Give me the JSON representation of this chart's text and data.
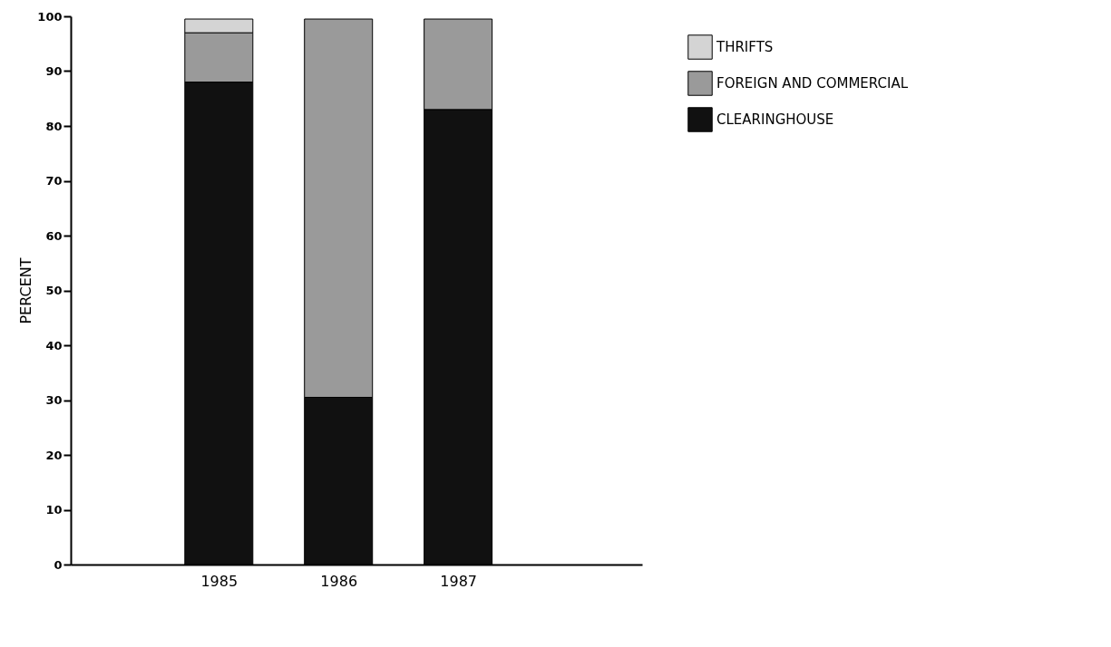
{
  "chart_data": {
    "type": "bar",
    "stacked": true,
    "ylabel": "PERCENT",
    "categories": [
      "1985",
      "1986",
      "1987"
    ],
    "series": [
      {
        "name": "CLEARINGHOUSE",
        "color": "#111111",
        "values": [
          88,
          30.5,
          83
        ]
      },
      {
        "name": "FOREIGN AND COMMERCIAL",
        "color": "#9a9a9a",
        "values": [
          9,
          69,
          16.5
        ]
      },
      {
        "name": "THRIFTS",
        "color": "#d4d4d4",
        "values": [
          2.5,
          null,
          null
        ]
      }
    ],
    "ylim": [
      0,
      100
    ],
    "yticks": [
      0,
      10,
      20,
      30,
      40,
      50,
      60,
      70,
      80,
      90,
      100
    ],
    "grid": false,
    "legend": "top right"
  }
}
